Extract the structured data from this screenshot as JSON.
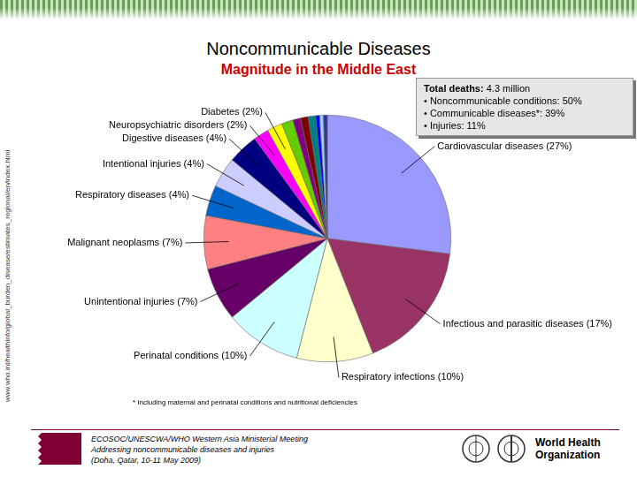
{
  "title": "Noncommunicable Diseases",
  "subtitle": "Magnitude in the Middle East",
  "source_url": "www.who.int/healthinfo/global_burden_disease/estimates_regional/en/index.html",
  "info_box": {
    "heading": "Total deaths:",
    "heading_value": "4.3 million",
    "items": [
      "Noncommunicable conditions: 50%",
      "Communicable diseases*: 39%",
      "Injuries: 11%"
    ]
  },
  "chart_data": {
    "type": "pie",
    "categories": [
      "Cardiovascular diseases (27%)",
      "Infectious and parasitic diseases (17%)",
      "Respiratory infections (10%)",
      "Perinatal conditions (10%)",
      "Unintentional injuries (7%)",
      "Malignant neoplasms (7%)",
      "Respiratory diseases (4%)",
      "Intentional injuries (4%)",
      "Digestive diseases (4%)",
      "Neuropsychiatric disorders (2%)",
      "Diabetes (2%)",
      null,
      null,
      null,
      null,
      null,
      null,
      null
    ],
    "values": [
      27,
      17,
      10,
      10,
      7,
      7,
      4,
      4,
      4,
      2,
      2,
      1.5,
      1,
      1,
      1,
      0.5,
      0.5,
      0.5
    ],
    "colors": [
      "#9999ff",
      "#993366",
      "#ffffcc",
      "#ccffff",
      "#660066",
      "#ff8080",
      "#0066cc",
      "#ccccff",
      "#000080",
      "#ff00ff",
      "#ffff00",
      "#66cc00",
      "#800080",
      "#800000",
      "#008080",
      "#0000ff",
      "#99ccff",
      "#333399"
    ],
    "legend": false
  },
  "footnote": "* Including maternal and perinatal conditions and nutritional deficiencies",
  "footer": [
    "ECOSOC/UNESCWA/WHO Western Asia Ministerial Meeting",
    "Addressing noncommunicable diseases and injuries",
    "(Doha, Qatar, 10-11 May 2009)"
  ],
  "logo_text": [
    "World Health",
    "Organization"
  ]
}
